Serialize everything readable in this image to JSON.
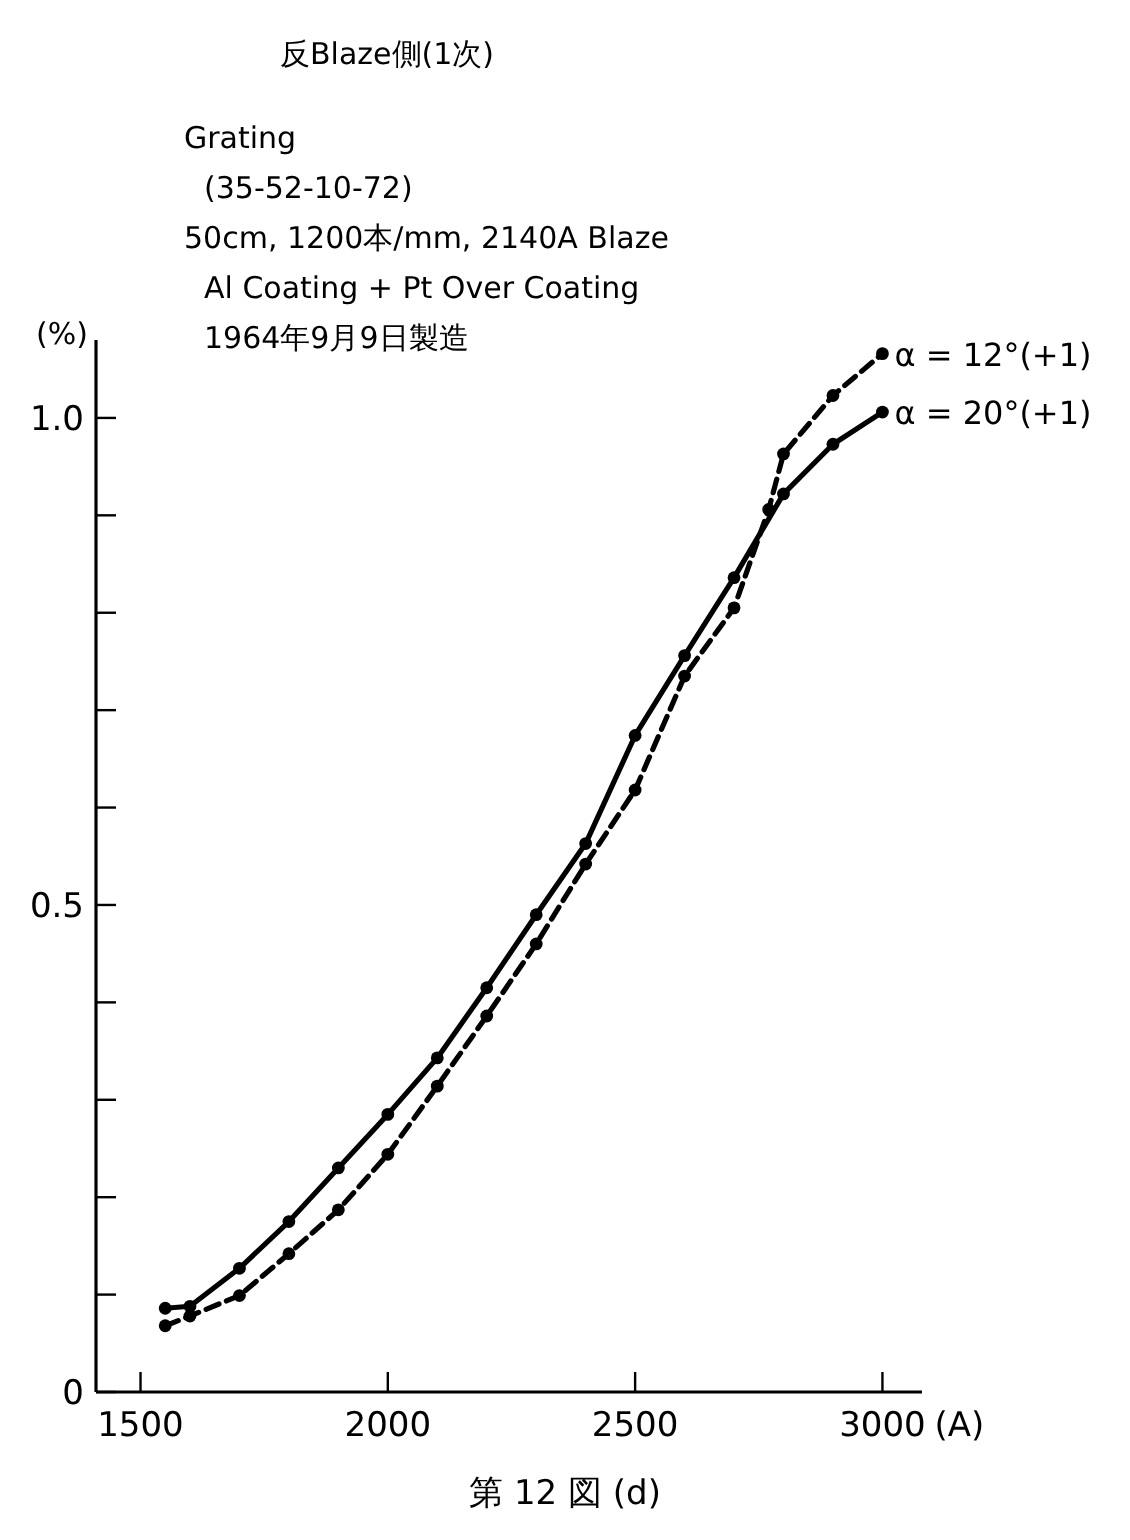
{
  "chart_data": {
    "type": "line",
    "title": "反Blaze側(1次)",
    "annotations": [
      "Grating",
      "(35-52-10-72)",
      "50cm, 1200本/mm, 2140A Blaze",
      "Al Coating + Pt Over Coating",
      "1964年9月9日製造",
      "第 12 図 (d)"
    ],
    "xlabel": "(A)",
    "ylabel": "(%)",
    "xlim": [
      1410,
      3080
    ],
    "ylim": [
      0,
      1.08
    ],
    "xticks": [
      1500,
      2000,
      2500,
      3000
    ],
    "yticks": [
      0,
      {
        "value": 0.1,
        "label": null
      },
      {
        "value": 0.2,
        "label": null
      },
      {
        "value": 0.3,
        "label": null
      },
      {
        "value": 0.4,
        "label": null
      },
      {
        "value": 0.5,
        "label": "0.5"
      },
      {
        "value": 0.6,
        "label": null
      },
      {
        "value": 0.7,
        "label": null
      },
      {
        "value": 0.8,
        "label": null
      },
      {
        "value": 0.9,
        "label": null
      },
      {
        "value": 1.0,
        "label": "1.0"
      }
    ],
    "grid": false,
    "marker": "circle",
    "series": [
      {
        "name": "α = 12°(+1)",
        "color": "#000000",
        "line_style": "dashed",
        "x": [
          1550,
          1600,
          1700,
          1800,
          1900,
          2000,
          2100,
          2200,
          2300,
          2400,
          2500,
          2600,
          2700,
          2770,
          2800,
          2900,
          3000
        ],
        "values": [
          0.068,
          0.078,
          0.099,
          0.142,
          0.187,
          0.244,
          0.314,
          0.386,
          0.46,
          0.542,
          0.618,
          0.735,
          0.805,
          0.906,
          0.963,
          1.023,
          1.066
        ]
      },
      {
        "name": "α = 20°(+1)",
        "color": "#000000",
        "line_style": "solid",
        "x": [
          1550,
          1600,
          1700,
          1800,
          1900,
          2000,
          2100,
          2200,
          2300,
          2400,
          2500,
          2600,
          2700,
          2800,
          2900,
          3000
        ],
        "values": [
          0.086,
          0.088,
          0.127,
          0.175,
          0.23,
          0.285,
          0.343,
          0.415,
          0.49,
          0.563,
          0.674,
          0.756,
          0.836,
          0.922,
          0.973,
          1.006
        ]
      }
    ]
  }
}
